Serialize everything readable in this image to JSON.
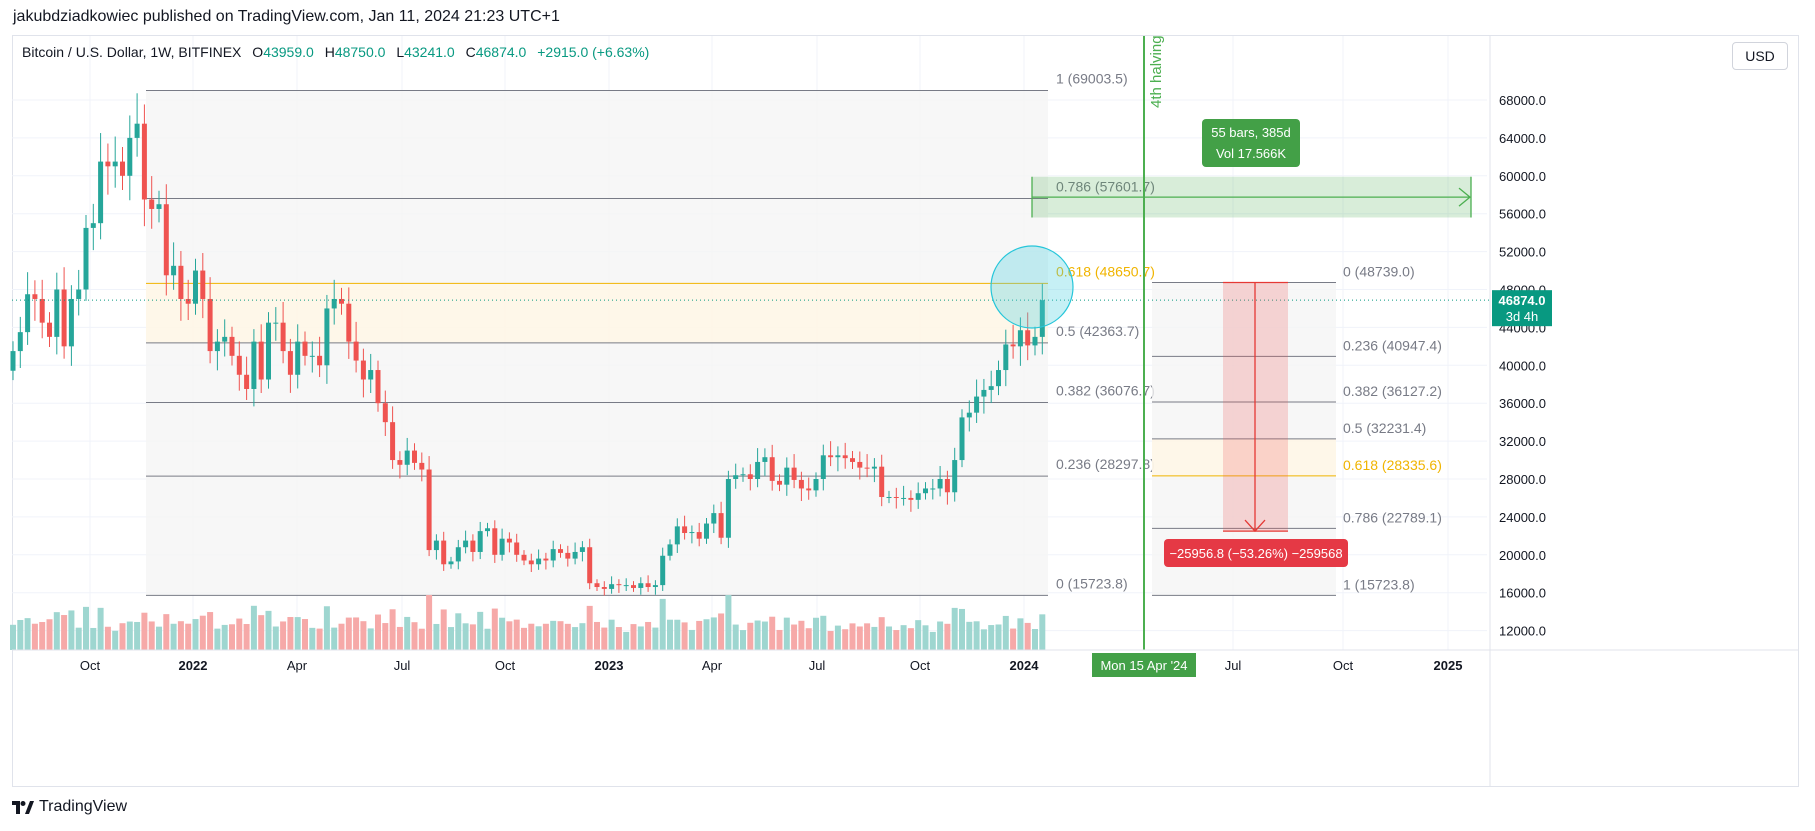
{
  "caption": "jakubdziadkowiec published on TradingView.com, Jan 11, 2024 21:23 UTC+1",
  "symbol": {
    "name": "Bitcoin / U.S. Dollar, 1W, BITFINEX",
    "o_label": "O",
    "o_value": "43959.0",
    "h_label": "H",
    "h_value": "48750.0",
    "l_label": "L",
    "l_value": "43241.0",
    "c_label": "C",
    "c_value": "46874.0",
    "change": "+2915.0 (+6.63%)"
  },
  "currency_button": "USD",
  "footer_logo_text": "TradingView",
  "colors": {
    "up": "#26a69a",
    "down": "#ef5350",
    "up_vol": "#9ed6d0",
    "down_vol": "#f6a9a8",
    "halving": "#4caf50",
    "fib_gold": "#f0b400",
    "last_price": "#089981"
  },
  "chart_data": {
    "type": "candlestick",
    "symbol": "BTCUSD",
    "interval": "1W",
    "y_axis": {
      "scale": "linear",
      "range": [
        10000,
        72000
      ],
      "ticks": [
        "68000.0",
        "64000.0",
        "60000.0",
        "56000.0",
        "52000.0",
        "48000.0",
        "44000.0",
        "40000.0",
        "36000.0",
        "32000.0",
        "28000.0",
        "24000.0",
        "20000.0",
        "16000.0",
        "12000.0"
      ]
    },
    "x_axis": {
      "ticks": [
        "Oct",
        "2022",
        "Apr",
        "Jul",
        "Oct",
        "2023",
        "Apr",
        "Jul",
        "Oct",
        "2024",
        "Jul",
        "Oct",
        "2025"
      ]
    },
    "last_price": {
      "value": "46874.0",
      "countdown": "3d 4h"
    },
    "candles_close": [
      41500,
      43500,
      47500,
      47000,
      44500,
      43000,
      48000,
      42000,
      47000,
      48000,
      54500,
      55000,
      61500,
      61000,
      61500,
      60000,
      64000,
      65500,
      57500,
      56500,
      57000,
      49500,
      50500,
      47000,
      46500,
      50000,
      47000,
      41500,
      42500,
      43000,
      41000,
      39000,
      37500,
      42500,
      38500,
      44500,
      44500,
      41500,
      39000,
      42500,
      41000,
      41000,
      40000,
      46000,
      47000,
      46500,
      42500,
      40500,
      38500,
      39500,
      36000,
      34000,
      30000,
      29500,
      31000,
      29700,
      29000,
      20500,
      21500,
      19000,
      19300,
      20800,
      21500,
      20300,
      22500,
      22800,
      20000,
      21700,
      21300,
      20000,
      19400,
      19000,
      19600,
      19400,
      20600,
      20200,
      19600,
      20300,
      20800,
      17000,
      16600,
      16400,
      16900,
      16800,
      16800,
      16500,
      17000,
      16600,
      16800,
      19900,
      21100,
      23000,
      22300,
      22400,
      21700,
      23300,
      24400,
      21800,
      28000,
      28400,
      28500,
      28000,
      29800,
      30300,
      27800,
      27400,
      29200,
      27900,
      27000,
      26800,
      28000,
      30500,
      30300,
      30500,
      30200,
      29800,
      29200,
      29100,
      29300,
      26100,
      26100,
      26000,
      26000,
      25800,
      26500,
      27000,
      27000,
      28000,
      26600,
      30000,
      34500,
      35000,
      36700,
      37400,
      37800,
      39500,
      42200,
      42000,
      43700,
      42100,
      43000,
      46874
    ]
  },
  "fib_retracement_main": {
    "levels": [
      {
        "label": "1 (69003.5)"
      },
      {
        "label": "0.786 (57601.7)"
      },
      {
        "label": "0.618 (48650.7)"
      },
      {
        "label": "0.5 (42363.7)"
      },
      {
        "label": "0.382 (36076.7)"
      },
      {
        "label": "0.236 (28297.8)"
      },
      {
        "label": "0 (15723.8)"
      }
    ]
  },
  "fib_retracement_projection": {
    "levels": [
      {
        "label": "0 (48739.0)"
      },
      {
        "label": "0.236 (40947.4)"
      },
      {
        "label": "0.382 (36127.2)"
      },
      {
        "label": "0.5 (32231.4)"
      },
      {
        "label": "0.618 (28335.6)"
      },
      {
        "label": "0.786 (22789.1)"
      },
      {
        "label": "1 (15723.8)"
      }
    ]
  },
  "halving": {
    "label": "4th halving",
    "date_label": "Mon 15 Apr '24"
  },
  "date_range_box": {
    "line1": "55 bars, 385d",
    "line2": "Vol 17.566K"
  },
  "price_range_label": "−25956.8 (−53.26%) −259568"
}
